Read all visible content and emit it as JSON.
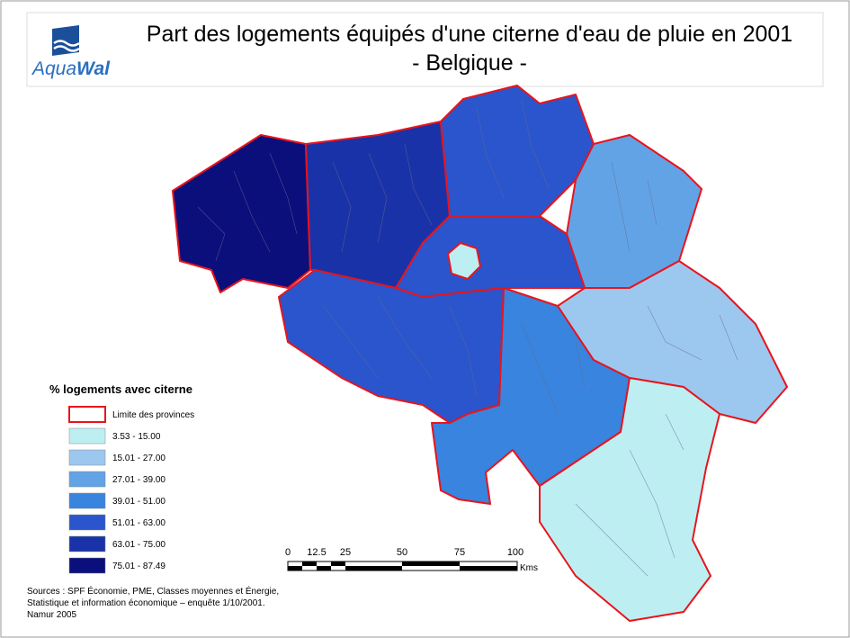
{
  "header": {
    "logo": [
      "Aqua",
      "Wal"
    ],
    "title": [
      "Part des logements équipés d'une citerne d'eau de pluie en 2001",
      "- Belgique -"
    ]
  },
  "legend": {
    "title": "% logements avec citerne",
    "boundary": "Limite des provinces",
    "classes": [
      {
        "label": "3.53 - 15.00",
        "color": "#bdeff2"
      },
      {
        "label": "15.01 - 27.00",
        "color": "#9cc8ef"
      },
      {
        "label": "27.01 - 39.00",
        "color": "#62a3e6"
      },
      {
        "label": "39.01 - 51.00",
        "color": "#3884de"
      },
      {
        "label": "51.01 - 63.00",
        "color": "#2a55cc"
      },
      {
        "label": "63.01 - 75.00",
        "color": "#1a32a8"
      },
      {
        "label": "75.01 - 87.49",
        "color": "#0b0f7c"
      }
    ]
  },
  "scale": {
    "labels": [
      "0",
      "12.5",
      "25",
      "50",
      "75",
      "100"
    ],
    "unit": "Kms"
  },
  "sources": [
    "Sources : SPF Économie, PME, Classes moyennes et Énergie,",
    "Statistique et information économique – enquête 1/10/2001.",
    "Namur 2005"
  ]
}
